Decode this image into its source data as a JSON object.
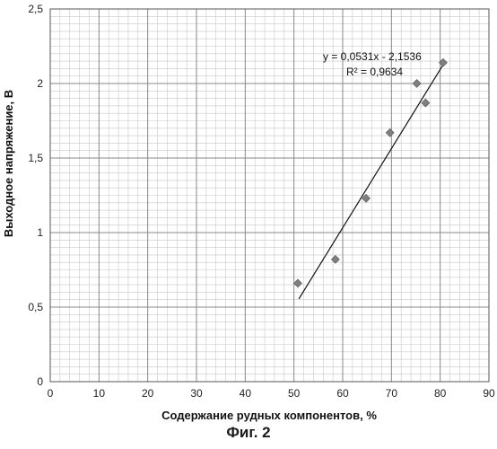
{
  "chart_data": {
    "type": "scatter",
    "xlabel": "Содержание рудных компонентов, %",
    "ylabel": "Выходное напряжение, В",
    "xlim": [
      0,
      90
    ],
    "ylim": [
      0,
      2.5
    ],
    "x_ticks": [
      0,
      10,
      20,
      30,
      40,
      50,
      60,
      70,
      80,
      90
    ],
    "y_ticks": [
      0,
      0.5,
      1,
      1.5,
      2,
      2.5
    ],
    "x_tick_labels": [
      "0",
      "10",
      "20",
      "30",
      "40",
      "50",
      "60",
      "70",
      "80",
      "90"
    ],
    "y_tick_labels": [
      "0",
      "0,5",
      "1",
      "1,5",
      "2",
      "2,5"
    ],
    "grid": true,
    "marker_color": "#7f7f7f",
    "series": [
      {
        "x": [
          50.8,
          58.5,
          64.8,
          69.7,
          75.2,
          77.0,
          80.6
        ],
        "y": [
          0.66,
          0.82,
          1.23,
          1.67,
          2.0,
          1.87,
          2.14
        ]
      }
    ],
    "trendline": {
      "type": "linear",
      "slope": 0.0531,
      "intercept": -2.1536,
      "x_range": [
        51,
        80.5
      ],
      "equation": "y = 0,0531x - 2,1536",
      "r_squared": "R² = 0,9634"
    }
  },
  "caption": "Фиг. 2"
}
